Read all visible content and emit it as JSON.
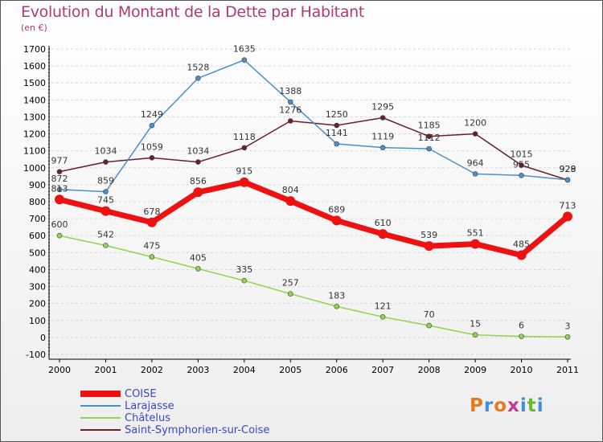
{
  "header": {
    "title": "Evolution du Montant de la Dette par Habitant",
    "subtitle": "(en €)"
  },
  "logo": {
    "text": "Proxiti",
    "colors": [
      "#e8781e",
      "#3e8fd6",
      "#e8781e",
      "#c43a8f",
      "#3e8fd6",
      "#6ab832",
      "#3e8fd6"
    ]
  },
  "colors": {
    "title": "#b03a6f",
    "legend_text": "#3a47c7",
    "grid": "#d8d8d8"
  },
  "chart_data": {
    "type": "line",
    "x": [
      "2000",
      "2001",
      "2002",
      "2003",
      "2004",
      "2005",
      "2006",
      "2007",
      "2008",
      "2009",
      "2010",
      "2011"
    ],
    "ylim": [
      -100,
      1700
    ],
    "yticks": [
      -100,
      0,
      100,
      200,
      300,
      400,
      500,
      600,
      700,
      800,
      900,
      1000,
      1100,
      1200,
      1300,
      1400,
      1500,
      1600,
      1700
    ],
    "grid": "horizontal dashed",
    "legend_position": "bottom-left",
    "series": [
      {
        "name": "Saint-Symphorien-sur-Coise",
        "color": "#6b1f2e",
        "width": 1.5,
        "values": [
          977,
          1034,
          1059,
          1034,
          1118,
          1276,
          1250,
          1295,
          1185,
          1200,
          1015,
          928
        ]
      },
      {
        "name": "Larajasse",
        "color": "#4a90c8",
        "width": 1.5,
        "values": [
          872,
          859,
          1249,
          1528,
          1635,
          1388,
          1141,
          1119,
          1112,
          964,
          955,
          929
        ]
      },
      {
        "name": "Châtelus",
        "color": "#8fd44e",
        "width": 1.5,
        "values": [
          600,
          542,
          475,
          405,
          335,
          257,
          183,
          121,
          70,
          15,
          6,
          3
        ]
      },
      {
        "name": "COISE",
        "color": "#ee1111",
        "width": 7,
        "values": [
          813,
          745,
          678,
          856,
          915,
          804,
          689,
          610,
          539,
          551,
          485,
          713
        ]
      }
    ],
    "data_labels": [
      {
        "series": "Saint-Symphorien-sur-Coise",
        "labels": [
          "977",
          "1034",
          "1059",
          "1034",
          "1118",
          "1276",
          "1250",
          "1295",
          "1185",
          "1200",
          "1015",
          "928"
        ]
      },
      {
        "series": "Larajasse",
        "labels": [
          "872",
          "859",
          "1249",
          "1528",
          "1635",
          "1388",
          "1141",
          "1119",
          "1112",
          "964",
          "955",
          "929"
        ]
      },
      {
        "series": "Châtelus",
        "labels": [
          "600",
          "542",
          "475",
          "405",
          "335",
          "257",
          "183",
          "121",
          "70",
          "15",
          "6",
          "3"
        ]
      },
      {
        "series": "COISE",
        "labels": [
          "813",
          "745",
          "678",
          "856",
          "915",
          "804",
          "689",
          "610",
          "539",
          "551",
          "485",
          "713"
        ]
      }
    ]
  },
  "legend": {
    "items": [
      {
        "label": "COISE",
        "color": "#ee1111",
        "thickness": 8
      },
      {
        "label": "Larajasse",
        "color": "#4a90c8",
        "thickness": 2
      },
      {
        "label": "Châtelus",
        "color": "#8fd44e",
        "thickness": 2
      },
      {
        "label": "Saint-Symphorien-sur-Coise",
        "color": "#6b1f2e",
        "thickness": 2
      }
    ]
  }
}
